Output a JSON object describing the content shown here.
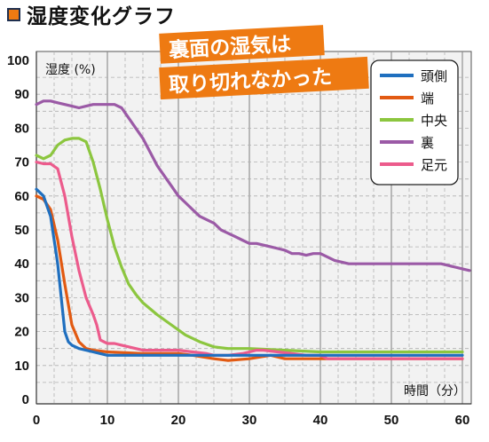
{
  "page": {
    "title": "湿度変化グラフ"
  },
  "callout": {
    "lines": [
      "裏面の湿気は",
      "取り切れなかった"
    ]
  },
  "chart_data": {
    "type": "line",
    "title": "湿度変化グラフ",
    "ylabel": "湿度 (%)",
    "xlabel": "時間（分）",
    "xlim": [
      0,
      61
    ],
    "ylim": [
      0,
      100
    ],
    "xticks": [
      0,
      10,
      20,
      30,
      40,
      50,
      60
    ],
    "yticks": [
      0,
      10,
      20,
      30,
      40,
      50,
      60,
      70,
      80,
      90,
      100
    ],
    "grid": "dashed, minor every 2.5 min / 5 %",
    "legend_position": "top-right",
    "series": [
      {
        "name": "頭側",
        "color": "#1f6fbf",
        "points": [
          [
            0,
            62
          ],
          [
            1,
            60
          ],
          [
            2,
            54
          ],
          [
            3,
            40
          ],
          [
            3.5,
            30
          ],
          [
            4,
            20
          ],
          [
            4.5,
            17
          ],
          [
            5,
            16
          ],
          [
            6,
            15
          ],
          [
            8,
            14
          ],
          [
            10,
            13
          ],
          [
            15,
            13
          ],
          [
            20,
            13
          ],
          [
            25,
            13
          ],
          [
            30,
            13
          ],
          [
            35,
            13
          ],
          [
            40,
            13
          ],
          [
            45,
            13
          ],
          [
            50,
            13
          ],
          [
            55,
            13
          ],
          [
            60,
            13
          ]
        ]
      },
      {
        "name": "端",
        "color": "#e25a12",
        "points": [
          [
            0,
            60
          ],
          [
            1,
            59
          ],
          [
            2,
            56
          ],
          [
            3,
            47
          ],
          [
            4,
            34
          ],
          [
            5,
            22
          ],
          [
            6,
            17
          ],
          [
            7,
            15
          ],
          [
            8,
            14.5
          ],
          [
            10,
            14
          ],
          [
            15,
            13.5
          ],
          [
            20,
            13.5
          ],
          [
            22,
            13
          ],
          [
            25,
            12
          ],
          [
            27,
            11.5
          ],
          [
            30,
            12
          ],
          [
            33,
            13
          ],
          [
            35,
            12
          ],
          [
            40,
            12
          ],
          [
            45,
            12
          ],
          [
            50,
            12
          ],
          [
            55,
            12
          ],
          [
            60,
            12
          ]
        ]
      },
      {
        "name": "中央",
        "color": "#8cc63f",
        "points": [
          [
            0,
            72
          ],
          [
            1,
            71
          ],
          [
            2,
            72
          ],
          [
            3,
            75
          ],
          [
            4,
            76.5
          ],
          [
            5,
            77
          ],
          [
            6,
            77
          ],
          [
            7,
            76
          ],
          [
            8,
            70
          ],
          [
            9,
            62
          ],
          [
            10,
            53
          ],
          [
            11,
            45
          ],
          [
            12,
            39
          ],
          [
            13,
            34
          ],
          [
            14,
            31
          ],
          [
            15,
            28.5
          ],
          [
            17,
            25
          ],
          [
            19,
            22
          ],
          [
            21,
            19
          ],
          [
            23,
            17
          ],
          [
            25,
            15.5
          ],
          [
            27,
            15
          ],
          [
            30,
            15
          ],
          [
            35,
            14.5
          ],
          [
            40,
            14
          ],
          [
            45,
            14
          ],
          [
            50,
            14
          ],
          [
            55,
            14
          ],
          [
            60,
            14
          ]
        ]
      },
      {
        "name": "裏",
        "color": "#9b5aa6",
        "points": [
          [
            0,
            87
          ],
          [
            1,
            88
          ],
          [
            2,
            88
          ],
          [
            3,
            87.5
          ],
          [
            4,
            87
          ],
          [
            5,
            86.5
          ],
          [
            6,
            86
          ],
          [
            7,
            86.5
          ],
          [
            8,
            87
          ],
          [
            9,
            87
          ],
          [
            10,
            87
          ],
          [
            11,
            87
          ],
          [
            12,
            86
          ],
          [
            13,
            83
          ],
          [
            14,
            80
          ],
          [
            15,
            77
          ],
          [
            16,
            73
          ],
          [
            17,
            69
          ],
          [
            18,
            66
          ],
          [
            19,
            63
          ],
          [
            20,
            60
          ],
          [
            21,
            58
          ],
          [
            22,
            56
          ],
          [
            23,
            54
          ],
          [
            25,
            52
          ],
          [
            26,
            50
          ],
          [
            27,
            49
          ],
          [
            28,
            48
          ],
          [
            29,
            47
          ],
          [
            30,
            46
          ],
          [
            31,
            46
          ],
          [
            32,
            45.5
          ],
          [
            33,
            45
          ],
          [
            34,
            44.5
          ],
          [
            35,
            44
          ],
          [
            36,
            43
          ],
          [
            37,
            43
          ],
          [
            38,
            42.5
          ],
          [
            39,
            43
          ],
          [
            40,
            43
          ],
          [
            41,
            42
          ],
          [
            42,
            41
          ],
          [
            43,
            40.5
          ],
          [
            44,
            40
          ],
          [
            45,
            40
          ],
          [
            48,
            40
          ],
          [
            50,
            40
          ],
          [
            55,
            40
          ],
          [
            57,
            40
          ],
          [
            58,
            39.5
          ],
          [
            59,
            39
          ],
          [
            60,
            38.5
          ],
          [
            61,
            38
          ]
        ]
      },
      {
        "name": "足元",
        "color": "#ec5b8c",
        "points": [
          [
            0,
            70
          ],
          [
            1,
            69.5
          ],
          [
            2,
            69.5
          ],
          [
            3,
            68
          ],
          [
            4,
            60
          ],
          [
            5,
            48
          ],
          [
            6,
            38
          ],
          [
            7,
            30
          ],
          [
            8,
            25
          ],
          [
            8.5,
            22
          ],
          [
            9,
            17.5
          ],
          [
            10,
            16.5
          ],
          [
            11,
            16.5
          ],
          [
            12,
            16
          ],
          [
            13,
            15.5
          ],
          [
            14,
            15
          ],
          [
            15,
            14.5
          ],
          [
            16,
            14.5
          ],
          [
            18,
            14.5
          ],
          [
            20,
            14.5
          ],
          [
            22,
            14
          ],
          [
            24,
            13.5
          ],
          [
            25,
            13
          ],
          [
            27,
            13
          ],
          [
            29,
            13.5
          ],
          [
            30,
            14
          ],
          [
            31,
            14.5
          ],
          [
            32,
            14.5
          ],
          [
            34,
            14
          ],
          [
            36,
            13.5
          ],
          [
            38,
            13
          ],
          [
            40,
            13
          ],
          [
            41,
            12
          ],
          [
            42,
            12
          ],
          [
            43,
            12
          ],
          [
            45,
            12
          ],
          [
            50,
            12
          ],
          [
            55,
            12
          ],
          [
            60,
            12
          ]
        ]
      }
    ]
  }
}
